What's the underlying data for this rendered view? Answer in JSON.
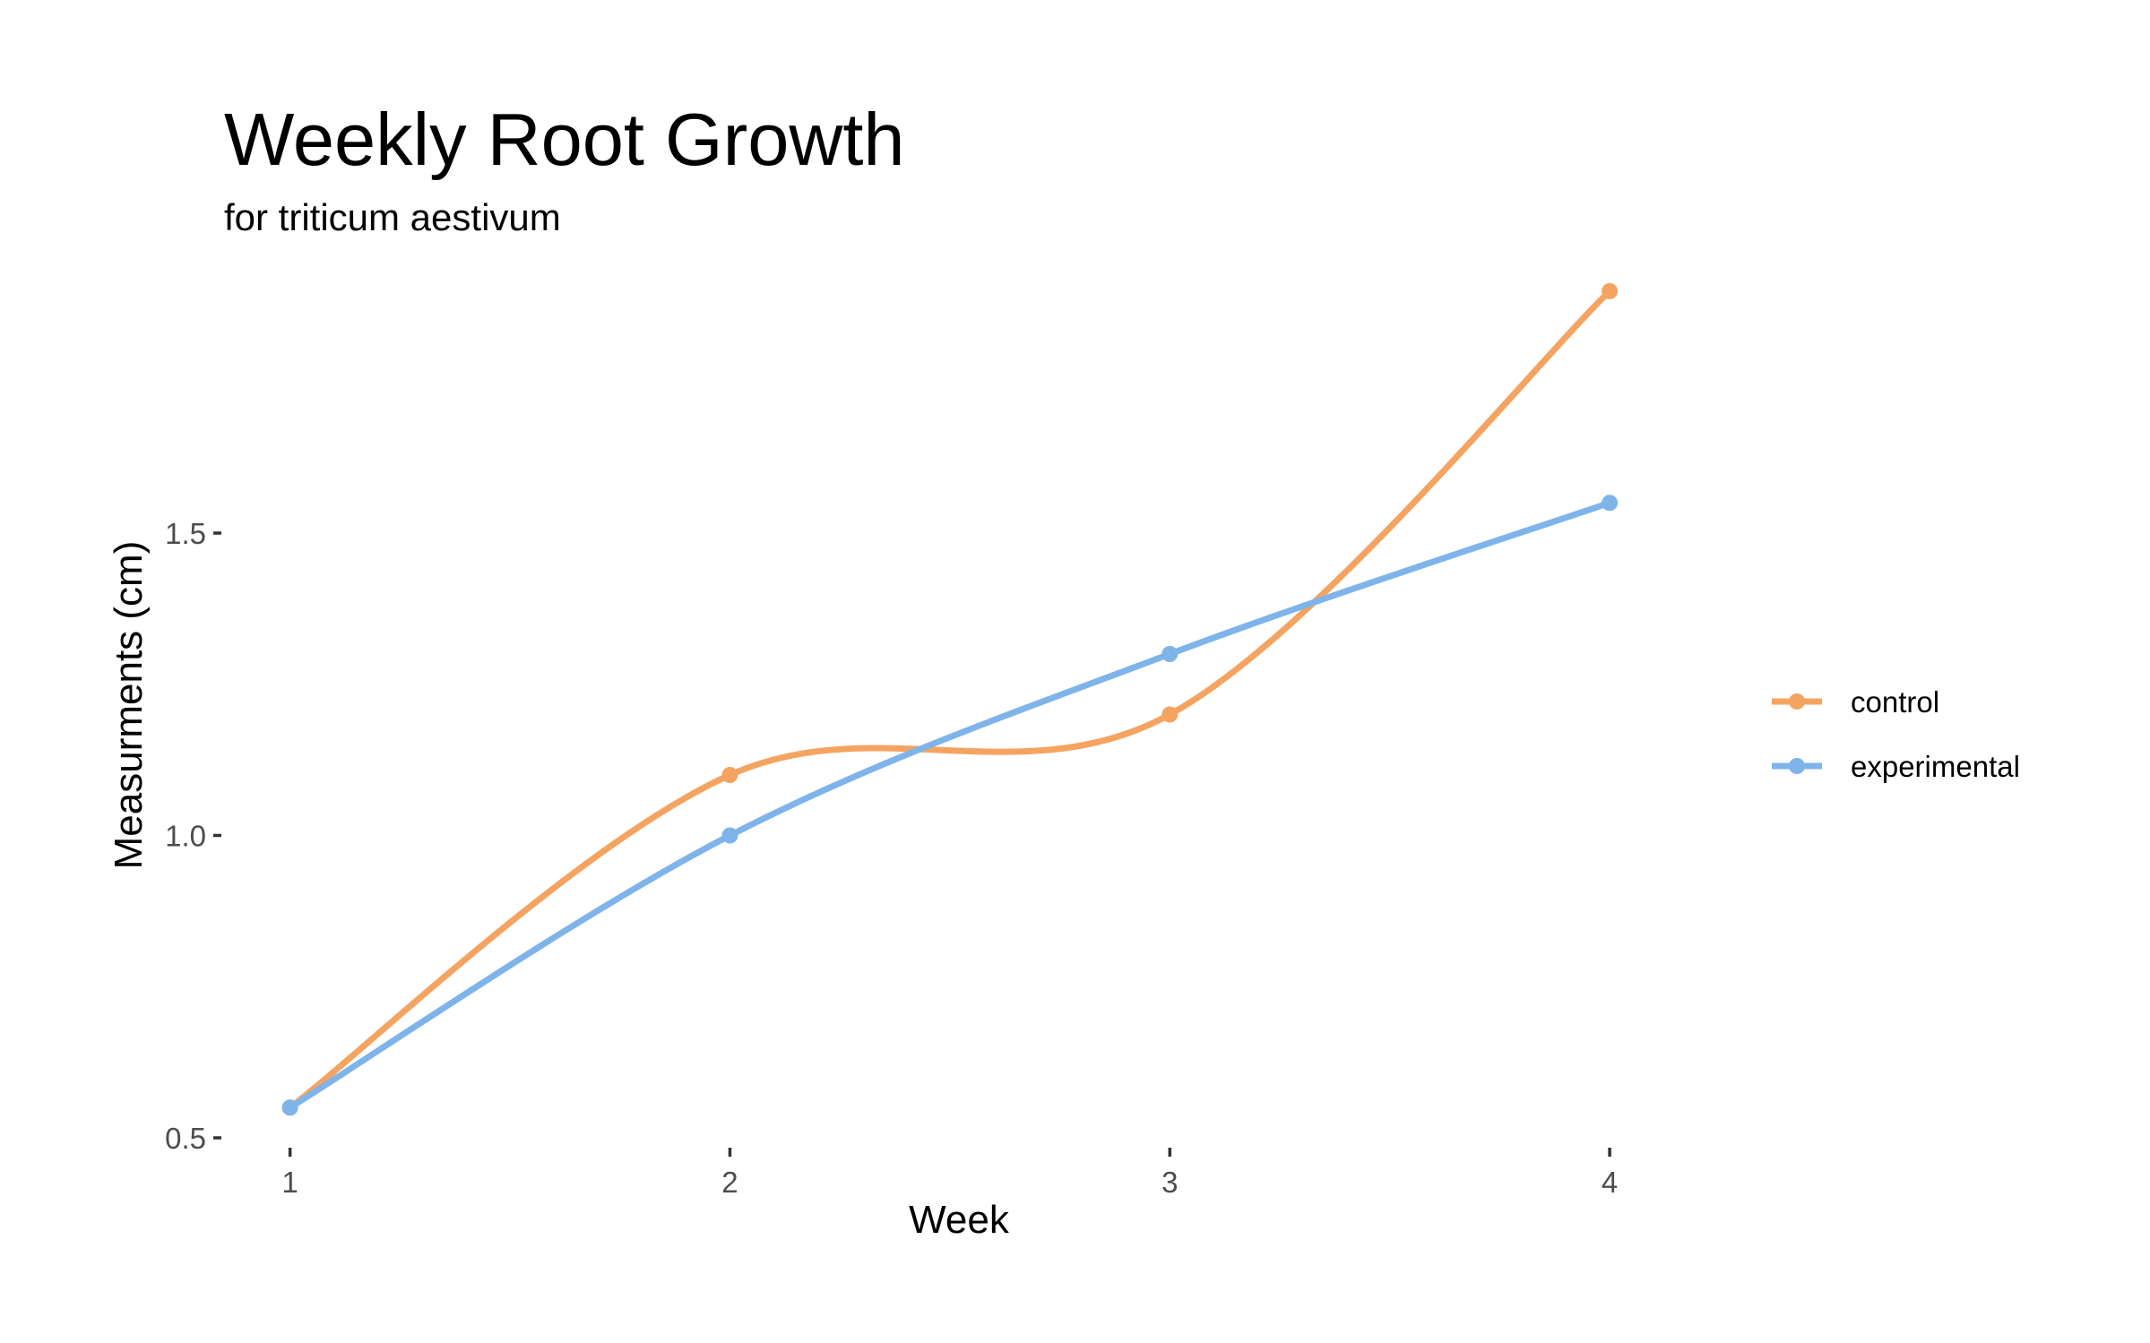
{
  "chart_data": {
    "type": "line",
    "title": "Weekly Root Growth",
    "subtitle": "for  triticum aestivum",
    "xlabel": "Week",
    "ylabel": "Measurments (cm)",
    "x": [
      1,
      2,
      3,
      4
    ],
    "x_tick_labels": [
      "1",
      "2",
      "3",
      "4"
    ],
    "y_ticks": [
      0.5,
      1.0,
      1.5
    ],
    "y_tick_labels": [
      "0.5",
      "1.0",
      "1.5"
    ],
    "xlim": [
      0.85,
      4.12
    ],
    "ylim": [
      0.5,
      1.94
    ],
    "grid": false,
    "smooth": true,
    "legend_position": "right",
    "series": [
      {
        "name": "control",
        "color": "#F4A460",
        "values": [
          0.55,
          1.1,
          1.2,
          1.9
        ]
      },
      {
        "name": "experimental",
        "color": "#7EB4EA",
        "values": [
          0.55,
          1.0,
          1.3,
          1.55
        ]
      }
    ]
  }
}
